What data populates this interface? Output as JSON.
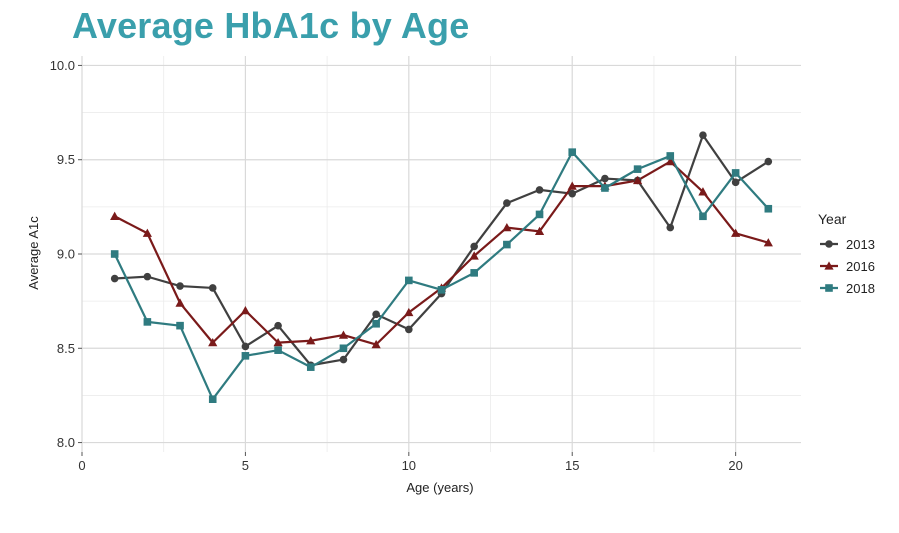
{
  "title": "Average HbA1c by Age",
  "chart_data": {
    "type": "line",
    "xlabel": "Age (years)",
    "ylabel": "Average A1c",
    "xlim": [
      0,
      22
    ],
    "ylim": [
      7.95,
      10.05
    ],
    "x_ticks": [
      0,
      5,
      10,
      15,
      20
    ],
    "x_tick_labels": [
      "0",
      "5",
      "10",
      "15",
      "20"
    ],
    "y_ticks": [
      8.0,
      8.5,
      9.0,
      9.5,
      10.0
    ],
    "y_tick_labels": [
      "8.0",
      "8.5",
      "9.0",
      "9.5",
      "10.0"
    ],
    "grid": true,
    "legend_title": "Year",
    "legend_position": "right",
    "x": [
      1,
      2,
      3,
      4,
      5,
      6,
      7,
      8,
      9,
      10,
      11,
      12,
      13,
      14,
      15,
      16,
      17,
      18,
      19,
      20,
      21
    ],
    "series": [
      {
        "name": "2013",
        "color": "#404040",
        "marker": "circle",
        "values": [
          8.87,
          8.88,
          8.83,
          8.82,
          8.51,
          8.62,
          8.41,
          8.44,
          8.68,
          8.6,
          8.79,
          9.04,
          9.27,
          9.34,
          9.32,
          9.4,
          9.39,
          9.14,
          9.63,
          9.38,
          9.49
        ]
      },
      {
        "name": "2016",
        "color": "#7a1a1a",
        "marker": "triangle",
        "values": [
          9.2,
          9.11,
          8.74,
          8.53,
          8.7,
          8.53,
          8.54,
          8.57,
          8.52,
          8.69,
          8.82,
          8.99,
          9.14,
          9.12,
          9.36,
          9.36,
          9.39,
          9.49,
          9.33,
          9.11,
          9.06
        ]
      },
      {
        "name": "2018",
        "color": "#2f7b80",
        "marker": "square",
        "values": [
          9.0,
          8.64,
          8.62,
          8.23,
          8.46,
          8.49,
          8.4,
          8.5,
          8.63,
          8.86,
          8.81,
          8.9,
          9.05,
          9.21,
          9.54,
          9.35,
          9.45,
          9.52,
          9.2,
          9.43,
          9.24
        ]
      }
    ]
  }
}
